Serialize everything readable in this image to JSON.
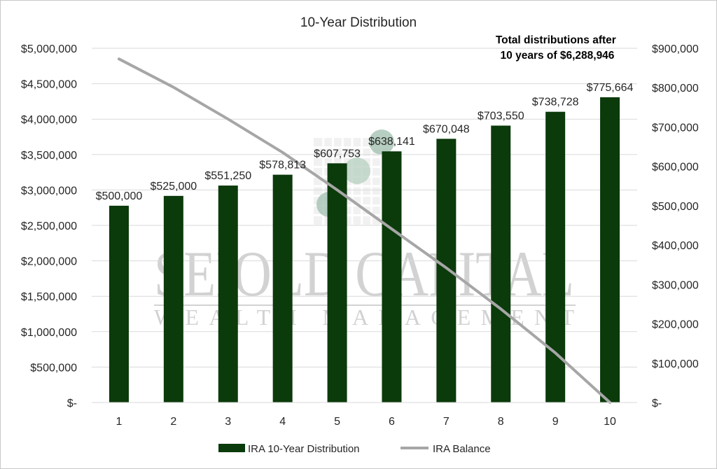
{
  "chart_data": {
    "type": "bar",
    "title": "10-Year Distribution",
    "categories": [
      "1",
      "2",
      "3",
      "4",
      "5",
      "6",
      "7",
      "8",
      "9",
      "10"
    ],
    "series": [
      {
        "name": "IRA 10-Year Distribution",
        "type": "bar",
        "axis": "right",
        "color": "#0b3a0b",
        "values": [
          500000,
          525000,
          551250,
          578813,
          607753,
          638141,
          670048,
          703550,
          738728,
          775664
        ],
        "labels": [
          "$500,000",
          "$525,000",
          "$551,250",
          "$578,813",
          "$607,753",
          "$638,141",
          "$670,048",
          "$703,550",
          "$738,728",
          "$775,664"
        ]
      },
      {
        "name": "IRA Balance",
        "type": "line",
        "axis": "left",
        "color": "#a6a6a6",
        "values": [
          4850000,
          4450000,
          4000000,
          3530000,
          3000000,
          2450000,
          1900000,
          1320000,
          700000,
          0
        ]
      }
    ],
    "y_left": {
      "ylim": [
        0,
        5000000
      ],
      "tick_values": [
        0,
        500000,
        1000000,
        1500000,
        2000000,
        2500000,
        3000000,
        3500000,
        4000000,
        4500000,
        5000000
      ],
      "tick_labels": [
        "$-",
        "$500,000",
        "$1,000,000",
        "$1,500,000",
        "$2,000,000",
        "$2,500,000",
        "$3,000,000",
        "$3,500,000",
        "$4,000,000",
        "$4,500,000",
        "$5,000,000"
      ]
    },
    "y_right": {
      "ylim": [
        0,
        900000
      ],
      "tick_values": [
        0,
        100000,
        200000,
        300000,
        400000,
        500000,
        600000,
        700000,
        800000,
        900000
      ],
      "tick_labels": [
        "$-",
        "$100,000",
        "$200,000",
        "$300,000",
        "$400,000",
        "$500,000",
        "$600,000",
        "$700,000",
        "$800,000",
        "$900,000"
      ]
    },
    "annotation": [
      "Total distributions after",
      "10 years of $6,288,946"
    ],
    "grid": true,
    "legend_position": "bottom"
  },
  "watermark": {
    "line1": "SEIOLD CAPITAL",
    "line2": "WEALTH MANAGEMENT"
  }
}
